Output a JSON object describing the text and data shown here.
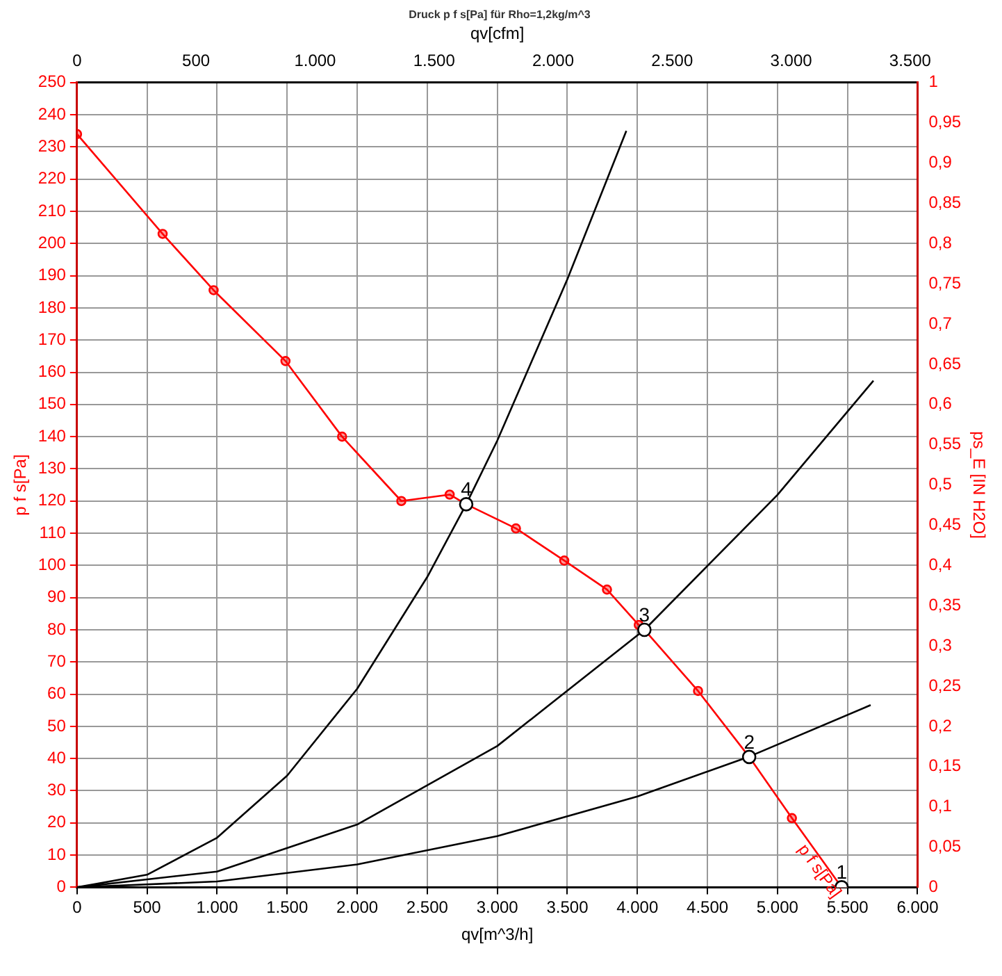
{
  "chart_data": {
    "type": "line",
    "title": "Druck p f s[Pa] für Rho=1,2kg/m^3",
    "xlabel": "qv[m^3/h]",
    "x2label": "qv[cfm]",
    "ylabel": "p f s[Pa]",
    "y2label": "ps_E [IN H2O]",
    "xlim": [
      0,
      6000
    ],
    "xticks": [
      {
        "value": 0,
        "label": "0"
      },
      {
        "value": 500,
        "label": "500"
      },
      {
        "value": 1000,
        "label": "1.000"
      },
      {
        "value": 1500,
        "label": "1.500"
      },
      {
        "value": 2000,
        "label": "2.000"
      },
      {
        "value": 2500,
        "label": "2.500"
      },
      {
        "value": 3000,
        "label": "3.000"
      },
      {
        "value": 3500,
        "label": "3.500"
      },
      {
        "value": 4000,
        "label": "4.000"
      },
      {
        "value": 4500,
        "label": "4.500"
      },
      {
        "value": 5000,
        "label": "5.000"
      },
      {
        "value": 5500,
        "label": "5.500"
      },
      {
        "value": 6000,
        "label": "6.000"
      }
    ],
    "x2lim": [
      0,
      3531
    ],
    "x2ticks": [
      {
        "value": 0,
        "label": "0"
      },
      {
        "value": 500,
        "label": "500"
      },
      {
        "value": 1000,
        "label": "1.000"
      },
      {
        "value": 1500,
        "label": "1.500"
      },
      {
        "value": 2000,
        "label": "2.000"
      },
      {
        "value": 2500,
        "label": "2.500"
      },
      {
        "value": 3000,
        "label": "3.000"
      },
      {
        "value": 3500,
        "label": "3.500"
      }
    ],
    "ylim": [
      0,
      250
    ],
    "yticks": [
      0,
      10,
      20,
      30,
      40,
      50,
      60,
      70,
      80,
      90,
      100,
      110,
      120,
      130,
      140,
      150,
      160,
      170,
      180,
      190,
      200,
      210,
      220,
      230,
      240,
      250
    ],
    "y2lim": [
      0,
      1
    ],
    "y2ticks": [
      {
        "value": 0,
        "label": "0"
      },
      {
        "value": 0.05,
        "label": "0,05"
      },
      {
        "value": 0.1,
        "label": "0,1"
      },
      {
        "value": 0.15,
        "label": "0,15"
      },
      {
        "value": 0.2,
        "label": "0,2"
      },
      {
        "value": 0.25,
        "label": "0,25"
      },
      {
        "value": 0.3,
        "label": "0,3"
      },
      {
        "value": 0.35,
        "label": "0,35"
      },
      {
        "value": 0.4,
        "label": "0,4"
      },
      {
        "value": 0.45,
        "label": "0,45"
      },
      {
        "value": 0.5,
        "label": "0,5"
      },
      {
        "value": 0.55,
        "label": "0,55"
      },
      {
        "value": 0.6,
        "label": "0,6"
      },
      {
        "value": 0.65,
        "label": "0,65"
      },
      {
        "value": 0.7,
        "label": "0,7"
      },
      {
        "value": 0.75,
        "label": "0,75"
      },
      {
        "value": 0.8,
        "label": "0,8"
      },
      {
        "value": 0.85,
        "label": "0,85"
      },
      {
        "value": 0.9,
        "label": "0,9"
      },
      {
        "value": 0.95,
        "label": "0,95"
      },
      {
        "value": 1,
        "label": "1"
      }
    ],
    "grid": true,
    "legend": false,
    "series": [
      {
        "name": "p f s[Pa]",
        "color": "#ff0000",
        "marker": "circle",
        "x": [
          0,
          611,
          975,
          1488,
          1892,
          2315,
          2660,
          2778,
          3133,
          3478,
          3783,
          4010,
          4050,
          4433,
          4798,
          5103,
          5458
        ],
        "values": [
          234,
          203,
          185.5,
          163.5,
          140,
          120,
          122,
          119,
          111.5,
          101.5,
          92.5,
          81.5,
          80,
          61,
          40.5,
          21.5,
          0
        ]
      },
      {
        "color": "#000000",
        "marker": "none",
        "x": [
          0,
          500,
          1000,
          1500,
          2000,
          2500,
          2778,
          3000,
          3500,
          3921
        ],
        "values": [
          0,
          3.9,
          15.4,
          34.7,
          61.7,
          96.4,
          119,
          138.8,
          188.9,
          235
        ]
      },
      {
        "color": "#000000",
        "marker": "none",
        "x": [
          0,
          1000,
          2000,
          3000,
          4050,
          5000,
          5685
        ],
        "values": [
          0,
          4.9,
          19.5,
          43.9,
          80,
          121.9,
          157.4
        ]
      },
      {
        "color": "#000000",
        "marker": "none",
        "x": [
          0,
          1000,
          2000,
          3000,
          4000,
          4798,
          5665
        ],
        "values": [
          0,
          1.8,
          7.1,
          15.9,
          28.2,
          40.6,
          56.6
        ]
      },
      {
        "type": "scatter",
        "color": "#000000",
        "marker": "circle",
        "x": [
          5458,
          4798,
          4050,
          2778
        ],
        "values": [
          0,
          40.5,
          80,
          119
        ]
      }
    ],
    "annotations": [
      {
        "text": "1",
        "x": 5458,
        "y": 0
      },
      {
        "text": "2",
        "x": 4798,
        "y": 40.5
      },
      {
        "text": "3",
        "x": 4050,
        "y": 80
      },
      {
        "text": "4",
        "x": 2778,
        "y": 119
      }
    ]
  }
}
